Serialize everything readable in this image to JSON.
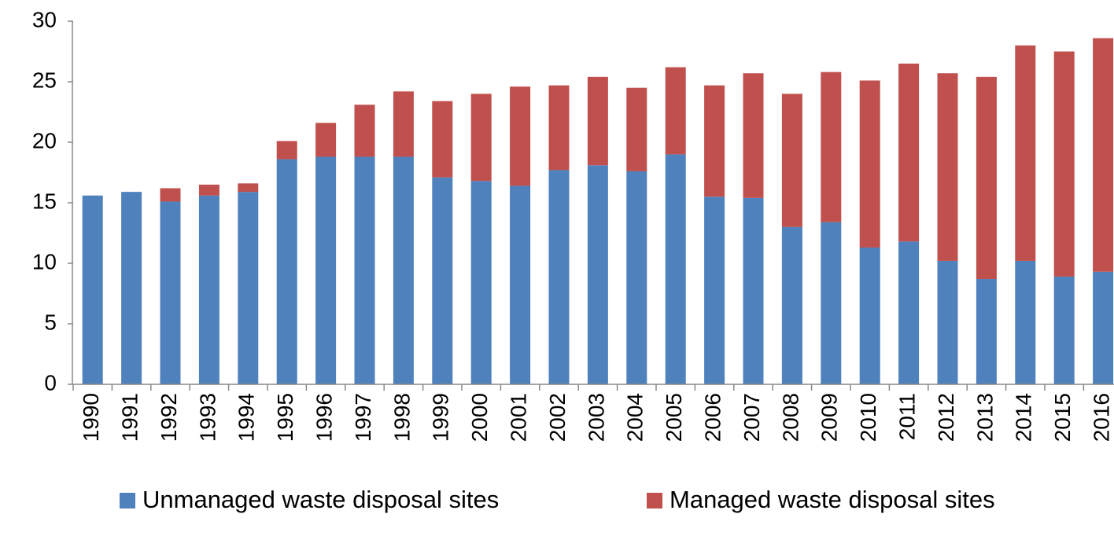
{
  "chart_data": {
    "type": "stacked_bar",
    "categories": [
      "1990",
      "1991",
      "1992",
      "1993",
      "1994",
      "1995",
      "1996",
      "1997",
      "1998",
      "1999",
      "2000",
      "2001",
      "2002",
      "2003",
      "2004",
      "2005",
      "2006",
      "2007",
      "2008",
      "2009",
      "2010",
      "2011",
      "2012",
      "2013",
      "2014",
      "2015",
      "2016"
    ],
    "series": [
      {
        "name": "Unmanaged waste disposal sites",
        "color": "#4f81bd",
        "values": [
          15.6,
          15.9,
          15.1,
          15.6,
          15.9,
          18.6,
          18.8,
          18.8,
          18.8,
          17.1,
          16.8,
          16.4,
          17.7,
          18.1,
          17.6,
          19.0,
          15.5,
          15.4,
          13.0,
          13.4,
          11.3,
          11.8,
          10.2,
          8.7,
          10.2,
          8.9,
          9.3
        ]
      },
      {
        "name": "Managed waste disposal sites",
        "color": "#c0504d",
        "values": [
          0,
          0,
          1.1,
          0.9,
          0.7,
          1.5,
          2.8,
          4.3,
          5.4,
          6.3,
          7.2,
          8.2,
          7.0,
          7.3,
          6.9,
          7.2,
          9.2,
          10.3,
          11.0,
          12.4,
          13.8,
          14.7,
          15.5,
          16.7,
          17.8,
          18.6,
          19.3
        ]
      }
    ],
    "ylim": [
      0,
      30
    ],
    "yticks": [
      0,
      5,
      10,
      15,
      20,
      25,
      30
    ],
    "grid": false,
    "legend": "bottom"
  }
}
